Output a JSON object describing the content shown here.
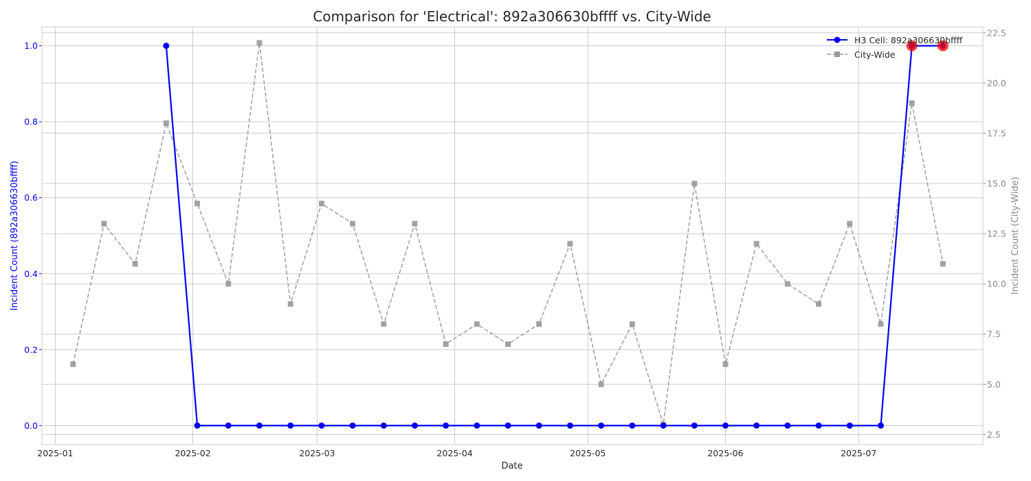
{
  "chart_data": {
    "type": "line",
    "title": "Comparison for 'Electrical': 892a306630bffff vs. City-Wide",
    "xlabel": "Date",
    "ylabel_left": "Incident Count (892a306630bffff)",
    "ylabel_right": "Incident Count (City-Wide)",
    "x_ticks": [
      "2025-01",
      "2025-02",
      "2025-03",
      "2025-04",
      "2025-05",
      "2025-06",
      "2025-07"
    ],
    "xlim": [
      "2024-12-29",
      "2025-07-29"
    ],
    "ylim_left": [
      -0.05,
      1.05
    ],
    "ylim_right": [
      2.0,
      22.8
    ],
    "y_ticks_left": [
      "0.0",
      "0.2",
      "0.4",
      "0.6",
      "0.8",
      "1.0"
    ],
    "y_ticks_right": [
      "2.5",
      "5.0",
      "7.5",
      "10.0",
      "12.5",
      "15.0",
      "17.5",
      "20.0",
      "22.5"
    ],
    "grid": true,
    "legend_position": "top-right",
    "series": [
      {
        "name": "H3 Cell: 892a306630bffff",
        "axis": "left",
        "color": "#0000ee",
        "marker": "circle",
        "line_style": "solid",
        "points": [
          [
            "2025-01-26",
            1
          ],
          [
            "2025-02-02",
            0
          ],
          [
            "2025-02-09",
            0
          ],
          [
            "2025-02-16",
            0
          ],
          [
            "2025-02-23",
            0
          ],
          [
            "2025-03-02",
            0
          ],
          [
            "2025-03-09",
            0
          ],
          [
            "2025-03-16",
            0
          ],
          [
            "2025-03-23",
            0
          ],
          [
            "2025-03-30",
            0
          ],
          [
            "2025-04-06",
            0
          ],
          [
            "2025-04-13",
            0
          ],
          [
            "2025-04-20",
            0
          ],
          [
            "2025-04-27",
            0
          ],
          [
            "2025-05-04",
            0
          ],
          [
            "2025-05-11",
            0
          ],
          [
            "2025-05-18",
            0
          ],
          [
            "2025-05-25",
            0
          ],
          [
            "2025-06-01",
            0
          ],
          [
            "2025-06-08",
            0
          ],
          [
            "2025-06-15",
            0
          ],
          [
            "2025-06-22",
            0
          ],
          [
            "2025-06-29",
            0
          ],
          [
            "2025-07-06",
            0
          ],
          [
            "2025-07-13",
            1
          ],
          [
            "2025-07-20",
            1
          ]
        ]
      },
      {
        "name": "City-Wide",
        "axis": "right",
        "color": "#999999",
        "marker": "square",
        "line_style": "dashed",
        "points": [
          [
            "2025-01-05",
            6
          ],
          [
            "2025-01-12",
            13
          ],
          [
            "2025-01-19",
            11
          ],
          [
            "2025-01-26",
            18
          ],
          [
            "2025-02-02",
            14
          ],
          [
            "2025-02-09",
            10
          ],
          [
            "2025-02-16",
            22
          ],
          [
            "2025-02-23",
            9
          ],
          [
            "2025-03-02",
            14
          ],
          [
            "2025-03-09",
            13
          ],
          [
            "2025-03-16",
            8
          ],
          [
            "2025-03-23",
            13
          ],
          [
            "2025-03-30",
            7
          ],
          [
            "2025-04-06",
            8
          ],
          [
            "2025-04-13",
            7
          ],
          [
            "2025-04-20",
            8
          ],
          [
            "2025-04-27",
            12
          ],
          [
            "2025-05-04",
            5
          ],
          [
            "2025-05-11",
            8
          ],
          [
            "2025-05-18",
            3
          ],
          [
            "2025-05-25",
            15
          ],
          [
            "2025-06-01",
            6
          ],
          [
            "2025-06-08",
            12
          ],
          [
            "2025-06-15",
            10
          ],
          [
            "2025-06-22",
            9
          ],
          [
            "2025-06-29",
            13
          ],
          [
            "2025-07-06",
            8
          ],
          [
            "2025-07-13",
            19
          ],
          [
            "2025-07-20",
            11
          ]
        ]
      }
    ],
    "highlights": {
      "axis": "left",
      "color": "#ff0000",
      "points": [
        [
          "2025-07-13",
          1
        ],
        [
          "2025-07-20",
          1
        ]
      ]
    }
  }
}
